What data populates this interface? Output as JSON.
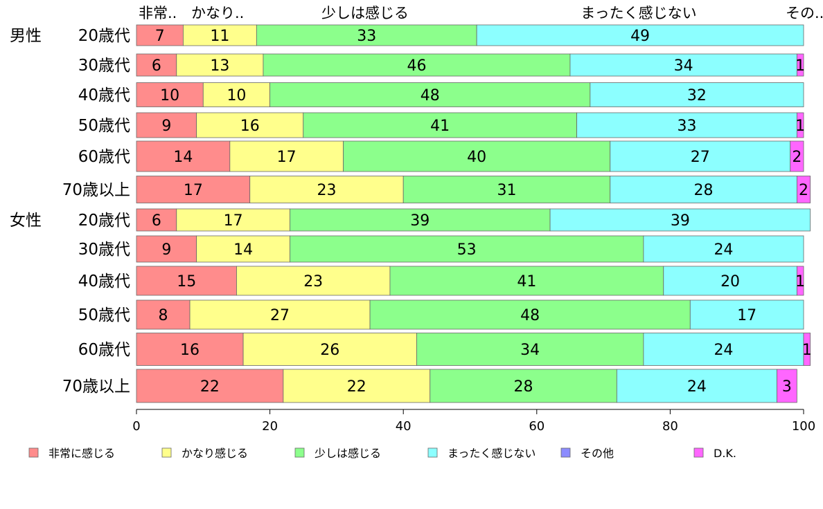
{
  "chart_data": {
    "type": "bar",
    "orientation": "horizontal",
    "stacked": true,
    "xlim": [
      0,
      100
    ],
    "xticks": [
      0,
      20,
      40,
      60,
      80,
      100
    ],
    "grid": false,
    "legend_position": "bottom",
    "top_labels": [
      "非常..",
      "かなり..",
      "少しは感じる",
      "まったく感じない",
      "その.."
    ],
    "rows": [
      {
        "group": "男性",
        "label": "20歳代"
      },
      {
        "group": "",
        "label": "30歳代"
      },
      {
        "group": "",
        "label": "40歳代"
      },
      {
        "group": "",
        "label": "50歳代"
      },
      {
        "group": "",
        "label": "60歳代"
      },
      {
        "group": "",
        "label": "70歳以上"
      },
      {
        "group": "女性",
        "label": "20歳代"
      },
      {
        "group": "",
        "label": "30歳代"
      },
      {
        "group": "",
        "label": "40歳代"
      },
      {
        "group": "",
        "label": "50歳代"
      },
      {
        "group": "",
        "label": "60歳代"
      },
      {
        "group": "",
        "label": "70歳以上"
      }
    ],
    "series": [
      {
        "name": "非常に感じる",
        "color": "#ff8c8c",
        "values": [
          7,
          6,
          10,
          9,
          14,
          17,
          6,
          9,
          15,
          8,
          16,
          22
        ]
      },
      {
        "name": "かなり感じる",
        "color": "#ffff8c",
        "values": [
          11,
          13,
          10,
          16,
          17,
          23,
          17,
          14,
          23,
          27,
          26,
          22
        ]
      },
      {
        "name": "少しは感じる",
        "color": "#8cff8c",
        "values": [
          33,
          46,
          48,
          41,
          40,
          31,
          39,
          53,
          41,
          48,
          34,
          28
        ]
      },
      {
        "name": "まったく感じない",
        "color": "#8cffff",
        "values": [
          49,
          34,
          32,
          33,
          27,
          28,
          39,
          24,
          20,
          17,
          24,
          24
        ]
      },
      {
        "name": "その他",
        "color": "#8c8cff",
        "values": [
          0,
          0,
          0,
          0,
          0,
          0,
          0,
          0,
          0,
          0,
          0,
          0
        ]
      },
      {
        "name": "D.K.",
        "color": "#ff66ff",
        "values": [
          0,
          1,
          0,
          1,
          2,
          2,
          0,
          0,
          1,
          0,
          1,
          3
        ]
      }
    ]
  }
}
